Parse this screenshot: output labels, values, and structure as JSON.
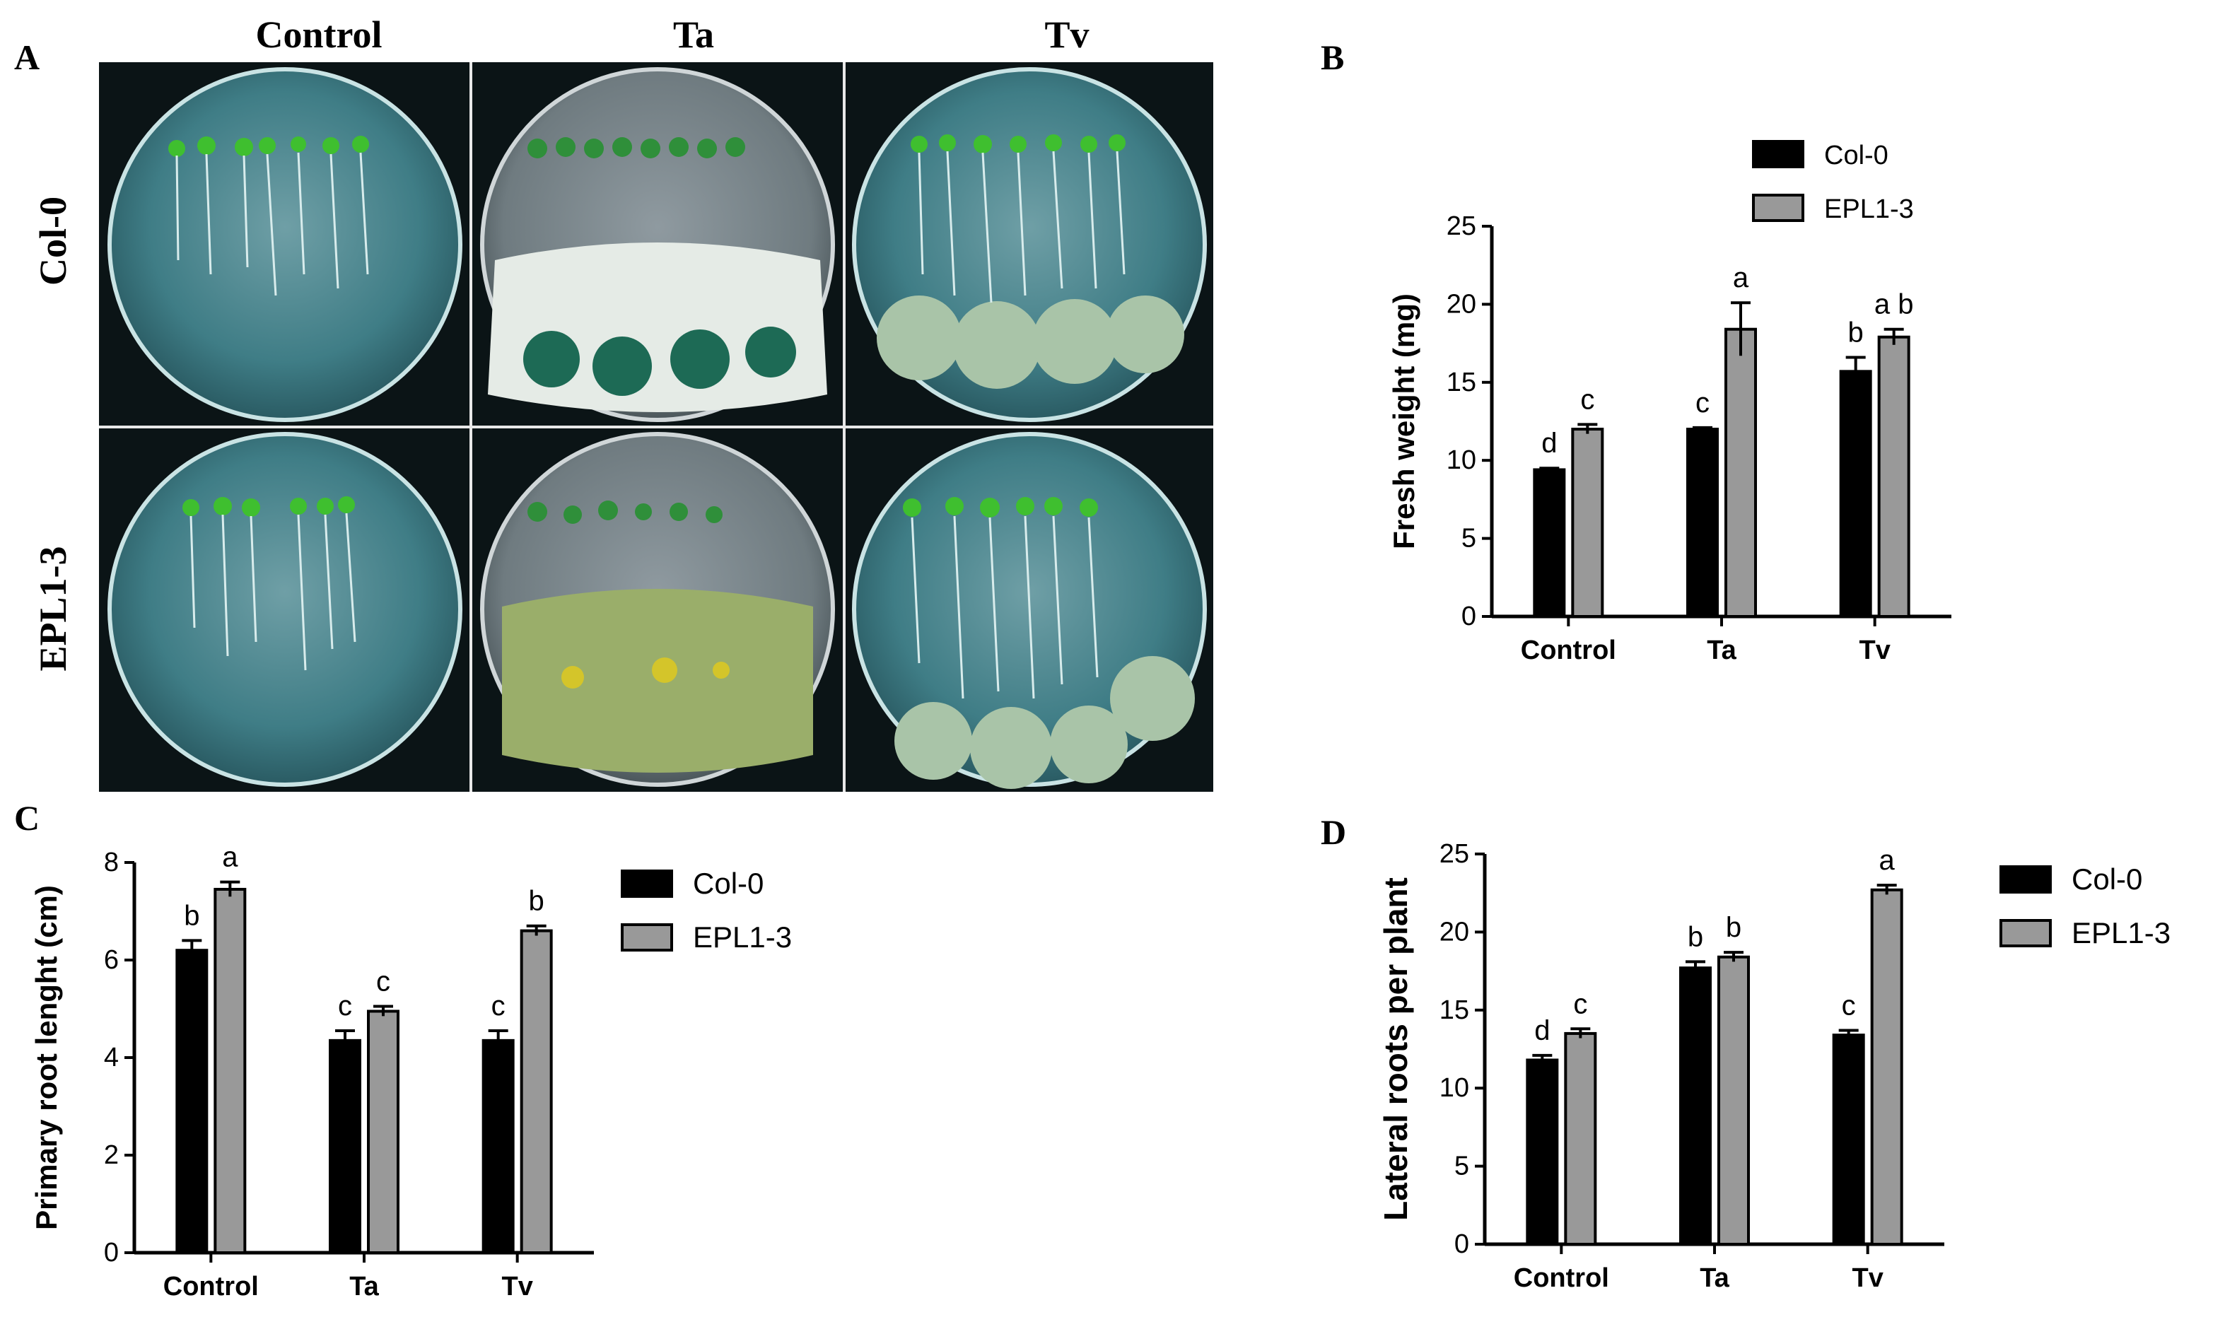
{
  "panels": {
    "A": "A",
    "B": "B",
    "C": "C",
    "D": "D"
  },
  "photo": {
    "columns": [
      "Control",
      "Ta",
      "Tv"
    ],
    "rows": [
      "Col-0",
      "EPL1-3"
    ]
  },
  "colors": {
    "col0": "#000000",
    "epl13": "#999999",
    "error": "#000000"
  },
  "chart_data": [
    {
      "id": "B",
      "type": "bar",
      "categories": [
        "Control",
        "Ta",
        "Tv"
      ],
      "series": [
        {
          "name": "Col-0",
          "values": [
            9.4,
            12.0,
            15.7
          ],
          "errors": [
            0.1,
            0.1,
            0.9
          ],
          "letters": [
            "d",
            "c",
            "b"
          ]
        },
        {
          "name": "EPL1-3",
          "values": [
            12.0,
            18.4,
            17.9
          ],
          "errors": [
            0.3,
            1.7,
            0.5
          ],
          "letters": [
            "c",
            "a",
            "a b"
          ]
        }
      ],
      "ylabel": "Fresh weight (mg)",
      "ylim": [
        0,
        25
      ],
      "yticks": [
        0,
        5,
        10,
        15,
        20,
        25
      ],
      "legend": "top-right"
    },
    {
      "id": "C",
      "type": "bar",
      "categories": [
        "Control",
        "Ta",
        "Tv"
      ],
      "series": [
        {
          "name": "Col-0",
          "values": [
            6.2,
            4.35,
            4.35
          ],
          "errors": [
            0.2,
            0.2,
            0.2
          ],
          "letters": [
            "b",
            "c",
            "c"
          ]
        },
        {
          "name": "EPL1-3",
          "values": [
            7.45,
            4.95,
            6.6
          ],
          "errors": [
            0.15,
            0.1,
            0.1
          ],
          "letters": [
            "a",
            "c",
            "b"
          ]
        }
      ],
      "ylabel": "Primary root lenght (cm)",
      "ylim": [
        0,
        8
      ],
      "yticks": [
        0,
        2,
        4,
        6,
        8
      ],
      "legend": "right"
    },
    {
      "id": "D",
      "type": "bar",
      "categories": [
        "Control",
        "Ta",
        "Tv"
      ],
      "series": [
        {
          "name": "Col-0",
          "values": [
            11.8,
            17.7,
            13.4
          ],
          "errors": [
            0.3,
            0.4,
            0.3
          ],
          "letters": [
            "d",
            "b",
            "c"
          ]
        },
        {
          "name": "EPL1-3",
          "values": [
            13.5,
            18.4,
            22.7
          ],
          "errors": [
            0.3,
            0.3,
            0.3
          ],
          "letters": [
            "c",
            "b",
            "a"
          ]
        }
      ],
      "ylabel": "Lateral roots per plant",
      "ylim": [
        0,
        25
      ],
      "yticks": [
        0,
        5,
        10,
        15,
        20,
        25
      ],
      "legend": "right"
    }
  ]
}
